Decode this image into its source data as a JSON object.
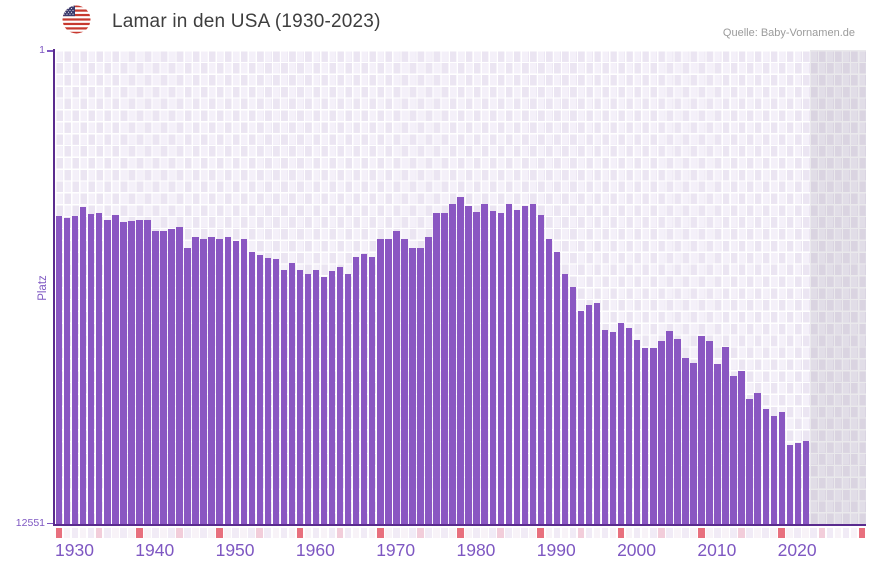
{
  "header": {
    "title": "Lamar in den USA (1930-2023)",
    "flag_icon": "us-flag-icon"
  },
  "source": "Quelle: Baby-Vornamen.de",
  "chart_data": {
    "type": "bar",
    "title": "Lamar in den USA (1930-2023)",
    "xlabel": "",
    "ylabel": "Platz",
    "y_axis": {
      "top_tick_label": "1",
      "bottom_tick_label": "12551",
      "min": 1,
      "max": 12551,
      "reversed": true,
      "note": "rank 1 rendered at top, rank 12551 at bottom"
    },
    "x_axis": {
      "data_start_year": 1930,
      "data_end_year": 2023,
      "plot_start_year": 1930,
      "plot_end_year": 2031,
      "no_data_from_year": 2024,
      "tick_labels": [
        "1930",
        "1940",
        "1950",
        "1960",
        "1970",
        "1980",
        "1990",
        "2000",
        "2010",
        "2020"
      ]
    },
    "grid": "on",
    "legend": "none",
    "categories": [
      1930,
      1931,
      1932,
      1933,
      1934,
      1935,
      1936,
      1937,
      1938,
      1939,
      1940,
      1941,
      1942,
      1943,
      1944,
      1945,
      1946,
      1947,
      1948,
      1949,
      1950,
      1951,
      1952,
      1953,
      1954,
      1955,
      1956,
      1957,
      1958,
      1959,
      1960,
      1961,
      1962,
      1963,
      1964,
      1965,
      1966,
      1967,
      1968,
      1969,
      1970,
      1971,
      1972,
      1973,
      1974,
      1975,
      1976,
      1977,
      1978,
      1979,
      1980,
      1981,
      1982,
      1983,
      1984,
      1985,
      1986,
      1987,
      1988,
      1989,
      1990,
      1991,
      1992,
      1993,
      1994,
      1995,
      1996,
      1997,
      1998,
      1999,
      2000,
      2001,
      2002,
      2003,
      2004,
      2005,
      2006,
      2007,
      2008,
      2009,
      2010,
      2011,
      2012,
      2013,
      2014,
      2015,
      2016,
      2017,
      2018,
      2019,
      2020,
      2021,
      2022,
      2023
    ],
    "values": [
      4400,
      4450,
      4400,
      4170,
      4340,
      4310,
      4520,
      4380,
      4570,
      4540,
      4520,
      4510,
      4800,
      4790,
      4740,
      4700,
      5240,
      4960,
      5010,
      4950,
      5020,
      4950,
      5060,
      5010,
      5350,
      5430,
      5520,
      5540,
      5840,
      5640,
      5840,
      5930,
      5840,
      6020,
      5870,
      5750,
      5930,
      5500,
      5400,
      5490,
      5020,
      5020,
      4800,
      5020,
      5240,
      5260,
      4950,
      4330,
      4320,
      4090,
      3910,
      4140,
      4300,
      4070,
      4260,
      4320,
      4090,
      4250,
      4140,
      4090,
      4370,
      5020,
      5360,
      5940,
      6280,
      6920,
      6770,
      6710,
      7430,
      7480,
      7250,
      7360,
      7700,
      7910,
      7890,
      7710,
      7460,
      7660,
      8170,
      8300,
      7590,
      7710,
      8330,
      7870,
      8650,
      8510,
      9250,
      9090,
      9520,
      9690,
      9590,
      10470,
      10420,
      10370
    ]
  },
  "colors": {
    "bar": "#8a57c2",
    "axis_line": "#5a2b8e",
    "axis_label": "#7e57c2",
    "title_text": "#3e3e3e",
    "source_text": "#9b9b9b",
    "grid_cell_dark": "#ebe5f2",
    "grid_cell_light": "#f4f0f9",
    "strip_decade": "#e8707e",
    "strip_half_decade": "#f2cdda",
    "strip_even_year": "#f1ebf6",
    "strip_odd_year": "#f8f3f8"
  }
}
